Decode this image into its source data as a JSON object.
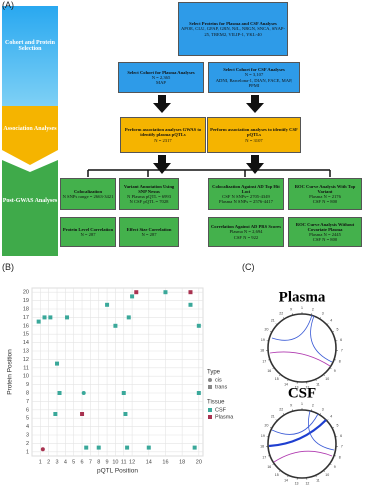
{
  "panel_labels": [
    "(A)",
    "(B)",
    "(C)"
  ],
  "flowchart": {
    "side_labels": [
      "Cohort and Protein Selection",
      "Association Analyses",
      "Post-GWAS Analyses"
    ],
    "nodes": [
      {
        "title": "Select Proteins for Plasma and CSF Analyses",
        "lines": [
          "APOE, CLU, GFAP, GRN, NfL, NRGN, SNCA, SNAP-25, TREM2, VILIP-1, YKL-40"
        ]
      },
      {
        "title": "Select Cohort for Plasma Analyses",
        "lines": [
          "N = 2,365",
          "MAP"
        ]
      },
      {
        "title": "Select Cohort for CSF Analyses",
        "lines": [
          "N = 3,107",
          "ADNI, Barcelona-1, DIAN, FACE, MAP, PPMI"
        ]
      },
      {
        "title": "Perform association analyses GWAS to identify plasma pQTLs",
        "lines": [
          "N = 2317"
        ]
      },
      {
        "title": "Perform association analyses to identify CSF pQTLs",
        "lines": [
          "N = 3107"
        ]
      },
      {
        "title": "Colocalization",
        "lines": [
          "N SNPs range = 2663-3421"
        ]
      },
      {
        "title": "Variant Annotation Using SNP Nexus",
        "lines": [
          "N Plasma pQTL = 6993",
          "N CSF pQTL = 7028"
        ]
      },
      {
        "title": "Colocalization Against AD Top Hit Loci",
        "lines": [
          "CSF N SNPs= 2705-4349",
          "Plasma N SNPs = 2576-4417"
        ]
      },
      {
        "title": "ROC Curve Analysis With Top Variant",
        "lines": [
          "Plasma N = 2176",
          "CSF N = 800"
        ]
      },
      {
        "title": "Protein Level Correlation",
        "lines": [
          "N = 287"
        ]
      },
      {
        "title": "Effect Size Correlation",
        "lines": [
          "N = 287"
        ]
      },
      {
        "title": "Correlation Against AD PRS Scores",
        "lines": [
          "Plasma N = 2,694",
          "CSF N = 922"
        ]
      },
      {
        "title": "ROC Curve Analysis Without Covariate Plasma",
        "lines": [
          "Plasma N = 2445",
          "CSF N = 800"
        ]
      }
    ]
  },
  "chart_data": {
    "type": "scatter",
    "x_label": "pQTL Position",
    "y_label": "Protein Position",
    "xlim": [
      0,
      20.5
    ],
    "ylim": [
      0.5,
      20.5
    ],
    "xticks": [
      1,
      2,
      3,
      4,
      5,
      6,
      7,
      8,
      9,
      10,
      11,
      12,
      14,
      16,
      18,
      20
    ],
    "yticks": [
      1,
      2,
      3,
      4,
      5,
      6,
      7,
      8,
      9,
      10,
      11,
      12,
      13,
      14,
      15,
      16,
      17,
      18,
      19,
      20
    ],
    "grid": true,
    "legend_type_title": "Type",
    "legend_types": [
      "cis",
      "trans"
    ],
    "legend_tissue_title": "Tissue",
    "series": [
      {
        "name": "CSF",
        "color": "#3aa89a",
        "x": [
          0.8,
          1.5,
          2.2,
          2.8,
          3.0,
          3.3,
          4.2,
          6.2,
          6.5,
          8.0,
          9.0,
          10.0,
          11.0,
          11.2,
          11.4,
          11.6,
          12.0,
          14.0,
          16.0,
          19.0,
          19.5,
          20.0,
          20.0
        ],
        "values": [
          16.5,
          17.0,
          17.0,
          5.5,
          11.5,
          8.0,
          17.0,
          8.0,
          1.5,
          1.5,
          18.5,
          16.0,
          8.0,
          5.5,
          1.5,
          17.0,
          19.5,
          1.5,
          20.0,
          18.5,
          1.5,
          16.0,
          8.0
        ],
        "marker_types": [
          1,
          1,
          1,
          1,
          1,
          1,
          1,
          0,
          1,
          1,
          1,
          1,
          1,
          1,
          1,
          1,
          1,
          1,
          1,
          1,
          1,
          1,
          1
        ]
      },
      {
        "name": "Plasma",
        "color": "#a83250",
        "x": [
          1.3,
          6.0,
          12.5,
          19.0
        ],
        "values": [
          1.3,
          5.5,
          20.0,
          20.0
        ],
        "marker_types": [
          0,
          1,
          1,
          1
        ]
      }
    ]
  },
  "circos": {
    "panels": [
      {
        "title": "Plasma"
      },
      {
        "title": "CSF"
      }
    ],
    "chromosomes": [
      "1",
      "2",
      "3",
      "4",
      "5",
      "6",
      "7",
      "8",
      "9",
      "10",
      "11",
      "12",
      "13",
      "14",
      "15",
      "16",
      "17",
      "18",
      "19",
      "20",
      "21",
      "22",
      "X"
    ]
  }
}
